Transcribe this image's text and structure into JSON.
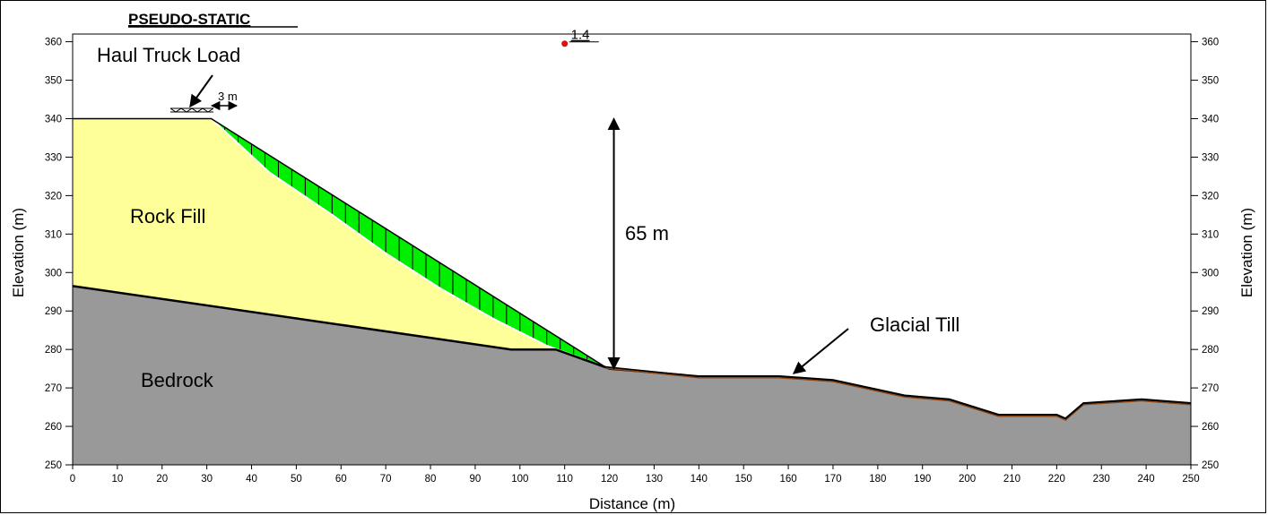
{
  "title": "PSEUDO-STATIC",
  "factor_of_safety": "1.4",
  "axes": {
    "x_title": "Distance (m)",
    "y_title_left": "Elevation (m)",
    "y_title_right": "Elevation (m)",
    "x_ticks": [
      0,
      10,
      20,
      30,
      40,
      50,
      60,
      70,
      80,
      90,
      100,
      110,
      120,
      130,
      140,
      150,
      160,
      170,
      180,
      190,
      200,
      210,
      220,
      230,
      240,
      250
    ],
    "y_ticks": [
      250,
      260,
      270,
      280,
      290,
      300,
      310,
      320,
      330,
      340,
      350,
      360
    ],
    "x_range": [
      0,
      250
    ],
    "y_range": [
      250,
      362
    ]
  },
  "labels": {
    "haul_truck": "Haul Truck Load",
    "rock_fill": "Rock Fill",
    "bedrock": "Bedrock",
    "glacial_till": "Glacial Till",
    "slope_height": "65 m",
    "setback": "3 m"
  },
  "colors": {
    "rock_fill": "#ffff99",
    "bedrock": "#999999",
    "slip_mass": "#00ee00",
    "fos_point": "#e01010",
    "till_line": "#8b4513"
  },
  "geometry": {
    "crest": [
      [
        0,
        340
      ],
      [
        31,
        340
      ]
    ],
    "slope_face": [
      [
        31,
        340
      ],
      [
        119,
        275.5
      ]
    ],
    "bedrock_surface": [
      [
        0,
        296.5
      ],
      [
        98,
        280
      ],
      [
        108,
        280
      ],
      [
        120,
        275
      ],
      [
        140,
        273
      ],
      [
        158,
        273
      ],
      [
        170,
        272
      ],
      [
        186,
        268
      ],
      [
        196,
        267
      ],
      [
        207,
        263
      ],
      [
        220,
        263
      ],
      [
        222,
        262
      ],
      [
        226,
        266
      ],
      [
        239,
        267
      ],
      [
        250,
        266
      ]
    ],
    "ground_surface": [
      [
        119,
        275.5
      ],
      [
        140,
        273
      ],
      [
        158,
        273
      ],
      [
        170,
        272
      ],
      [
        186,
        268
      ],
      [
        196,
        267
      ],
      [
        207,
        263
      ],
      [
        220,
        263
      ],
      [
        222,
        262
      ],
      [
        226,
        266
      ],
      [
        239,
        267
      ],
      [
        250,
        266
      ]
    ],
    "slip_surface": [
      [
        31,
        340
      ],
      [
        44,
        326
      ],
      [
        58,
        315
      ],
      [
        70,
        305
      ],
      [
        82,
        296
      ],
      [
        94,
        288
      ],
      [
        106,
        281
      ],
      [
        119,
        275.5
      ]
    ],
    "fos_point": [
      110,
      359.5
    ],
    "height_arrow": {
      "x": 121,
      "y_top": 340,
      "y_bottom": 275
    }
  }
}
